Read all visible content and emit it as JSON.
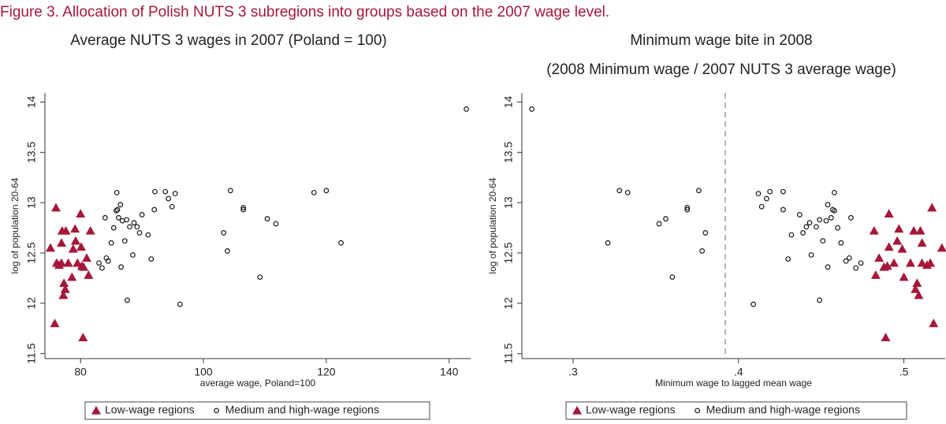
{
  "figure_title": "Figure 3. Allocation of Polish NUTS 3 subregions into groups based on the 2007 wage level.",
  "chart_data": [
    {
      "type": "scatter",
      "title": "Average NUTS 3 wages in 2007 (Poland = 100)",
      "x_label": "average wage, Poland=100",
      "y_label": "log of population 20-64",
      "xlim": [
        74.2,
        143.5
      ],
      "ylim": [
        11.45,
        14.09
      ],
      "xticks": [
        80,
        100,
        120,
        140
      ],
      "yticks": [
        11.5,
        12,
        12.5,
        13,
        13.5,
        14
      ],
      "legend": "bottom",
      "series": [
        {
          "name": "Low-wage regions",
          "color": "#a6173a",
          "marker": "triangle",
          "x": [
            75.1,
            76.0,
            75.8,
            76.1,
            76.5,
            76.9,
            77.0,
            77.3,
            77.2,
            77.5,
            77.6,
            78.0,
            78.6,
            78.8,
            79.2,
            79.5,
            80.0,
            80.1,
            80.2,
            80.5,
            80.4,
            81.0,
            81.3,
            81.6,
            79.1,
            76.9
          ],
          "y": [
            12.55,
            12.95,
            11.8,
            12.4,
            12.38,
            12.4,
            12.72,
            12.2,
            12.08,
            12.14,
            12.72,
            12.4,
            12.26,
            12.54,
            12.62,
            12.4,
            12.89,
            12.56,
            12.37,
            12.36,
            11.66,
            12.45,
            12.28,
            12.72,
            12.74,
            12.6
          ]
        },
        {
          "name": "Medium and high-wage regions",
          "color": "#1a1a1a",
          "marker": "circle",
          "x": [
            83,
            83.5,
            84,
            84.2,
            84.5,
            85,
            85.4,
            85.8,
            85.9,
            86,
            86.2,
            86.5,
            86.6,
            86.8,
            87.2,
            87.5,
            87.6,
            88,
            88.5,
            88.7,
            89.2,
            89.6,
            90,
            91,
            91.5,
            92,
            92.1,
            93.8,
            94.3,
            94.9,
            95.4,
            96.2,
            103.3,
            103.9,
            104.4,
            106.5,
            106.5,
            109.2,
            110.4,
            111.8,
            118,
            120,
            122.4,
            142.8
          ],
          "y": [
            12.4,
            12.35,
            12.85,
            12.45,
            12.42,
            12.6,
            12.75,
            12.92,
            13.1,
            12.93,
            12.85,
            12.98,
            12.36,
            12.82,
            12.62,
            12.83,
            12.03,
            12.76,
            12.48,
            12.8,
            12.76,
            12.7,
            12.88,
            12.68,
            12.44,
            12.93,
            13.11,
            13.11,
            13.04,
            12.96,
            13.09,
            11.99,
            12.7,
            12.52,
            13.12,
            12.95,
            12.93,
            12.26,
            12.84,
            12.79,
            13.1,
            13.12,
            12.6,
            13.93
          ]
        }
      ]
    },
    {
      "type": "scatter",
      "title": "Minimum wage bite in 2008",
      "subtitle": "(2008 Minimum wage / 2007 NUTS 3 average wage)",
      "x_label": "Minimum wage to lagged mean wage",
      "y_label": "log of population 20-64",
      "xlim": [
        0.269,
        0.525
      ],
      "ylim": [
        11.45,
        14.09
      ],
      "xticks": [
        {
          "value": 0.3,
          "label": ".3"
        },
        {
          "value": 0.4,
          "label": ".4"
        },
        {
          "value": 0.5,
          "label": ".5"
        }
      ],
      "yticks": [
        11.5,
        12,
        12.5,
        13,
        13.5,
        14
      ],
      "reference_line": 0.392,
      "legend": "bottom",
      "series": [
        {
          "name": "Low-wage regions",
          "color": "#a6173a",
          "marker": "triangle",
          "x": [
            0.523,
            0.517,
            0.518,
            0.516,
            0.514,
            0.511,
            0.51,
            0.508,
            0.509,
            0.507,
            0.506,
            0.504,
            0.5,
            0.499,
            0.496,
            0.494,
            0.491,
            0.491,
            0.49,
            0.488,
            0.489,
            0.485,
            0.483,
            0.482,
            0.497,
            0.511
          ],
          "y": [
            12.55,
            12.95,
            11.8,
            12.4,
            12.38,
            12.4,
            12.72,
            12.2,
            12.08,
            12.14,
            12.72,
            12.4,
            12.26,
            12.54,
            12.62,
            12.4,
            12.89,
            12.56,
            12.37,
            12.36,
            11.66,
            12.45,
            12.28,
            12.72,
            12.74,
            12.6
          ]
        },
        {
          "name": "Medium and high-wage regions",
          "color": "#1a1a1a",
          "marker": "circle",
          "x": [
            0.474,
            0.471,
            0.468,
            0.467,
            0.465,
            0.462,
            0.46,
            0.458,
            0.458,
            0.457,
            0.456,
            0.454,
            0.454,
            0.453,
            0.451,
            0.449,
            0.449,
            0.447,
            0.444,
            0.443,
            0.441,
            0.439,
            0.437,
            0.432,
            0.43,
            0.427,
            0.427,
            0.419,
            0.417,
            0.414,
            0.412,
            0.409,
            0.38,
            0.378,
            0.376,
            0.369,
            0.369,
            0.36,
            0.356,
            0.352,
            0.333,
            0.328,
            0.321,
            0.275
          ],
          "y": [
            12.4,
            12.35,
            12.85,
            12.45,
            12.42,
            12.6,
            12.75,
            12.92,
            13.1,
            12.93,
            12.85,
            12.98,
            12.36,
            12.82,
            12.62,
            12.83,
            12.03,
            12.76,
            12.48,
            12.8,
            12.76,
            12.7,
            12.88,
            12.68,
            12.44,
            12.93,
            13.11,
            13.11,
            13.04,
            12.96,
            13.09,
            11.99,
            12.7,
            12.52,
            13.12,
            12.95,
            12.93,
            12.26,
            12.84,
            12.79,
            13.1,
            13.12,
            12.6,
            13.93
          ]
        }
      ]
    }
  ]
}
